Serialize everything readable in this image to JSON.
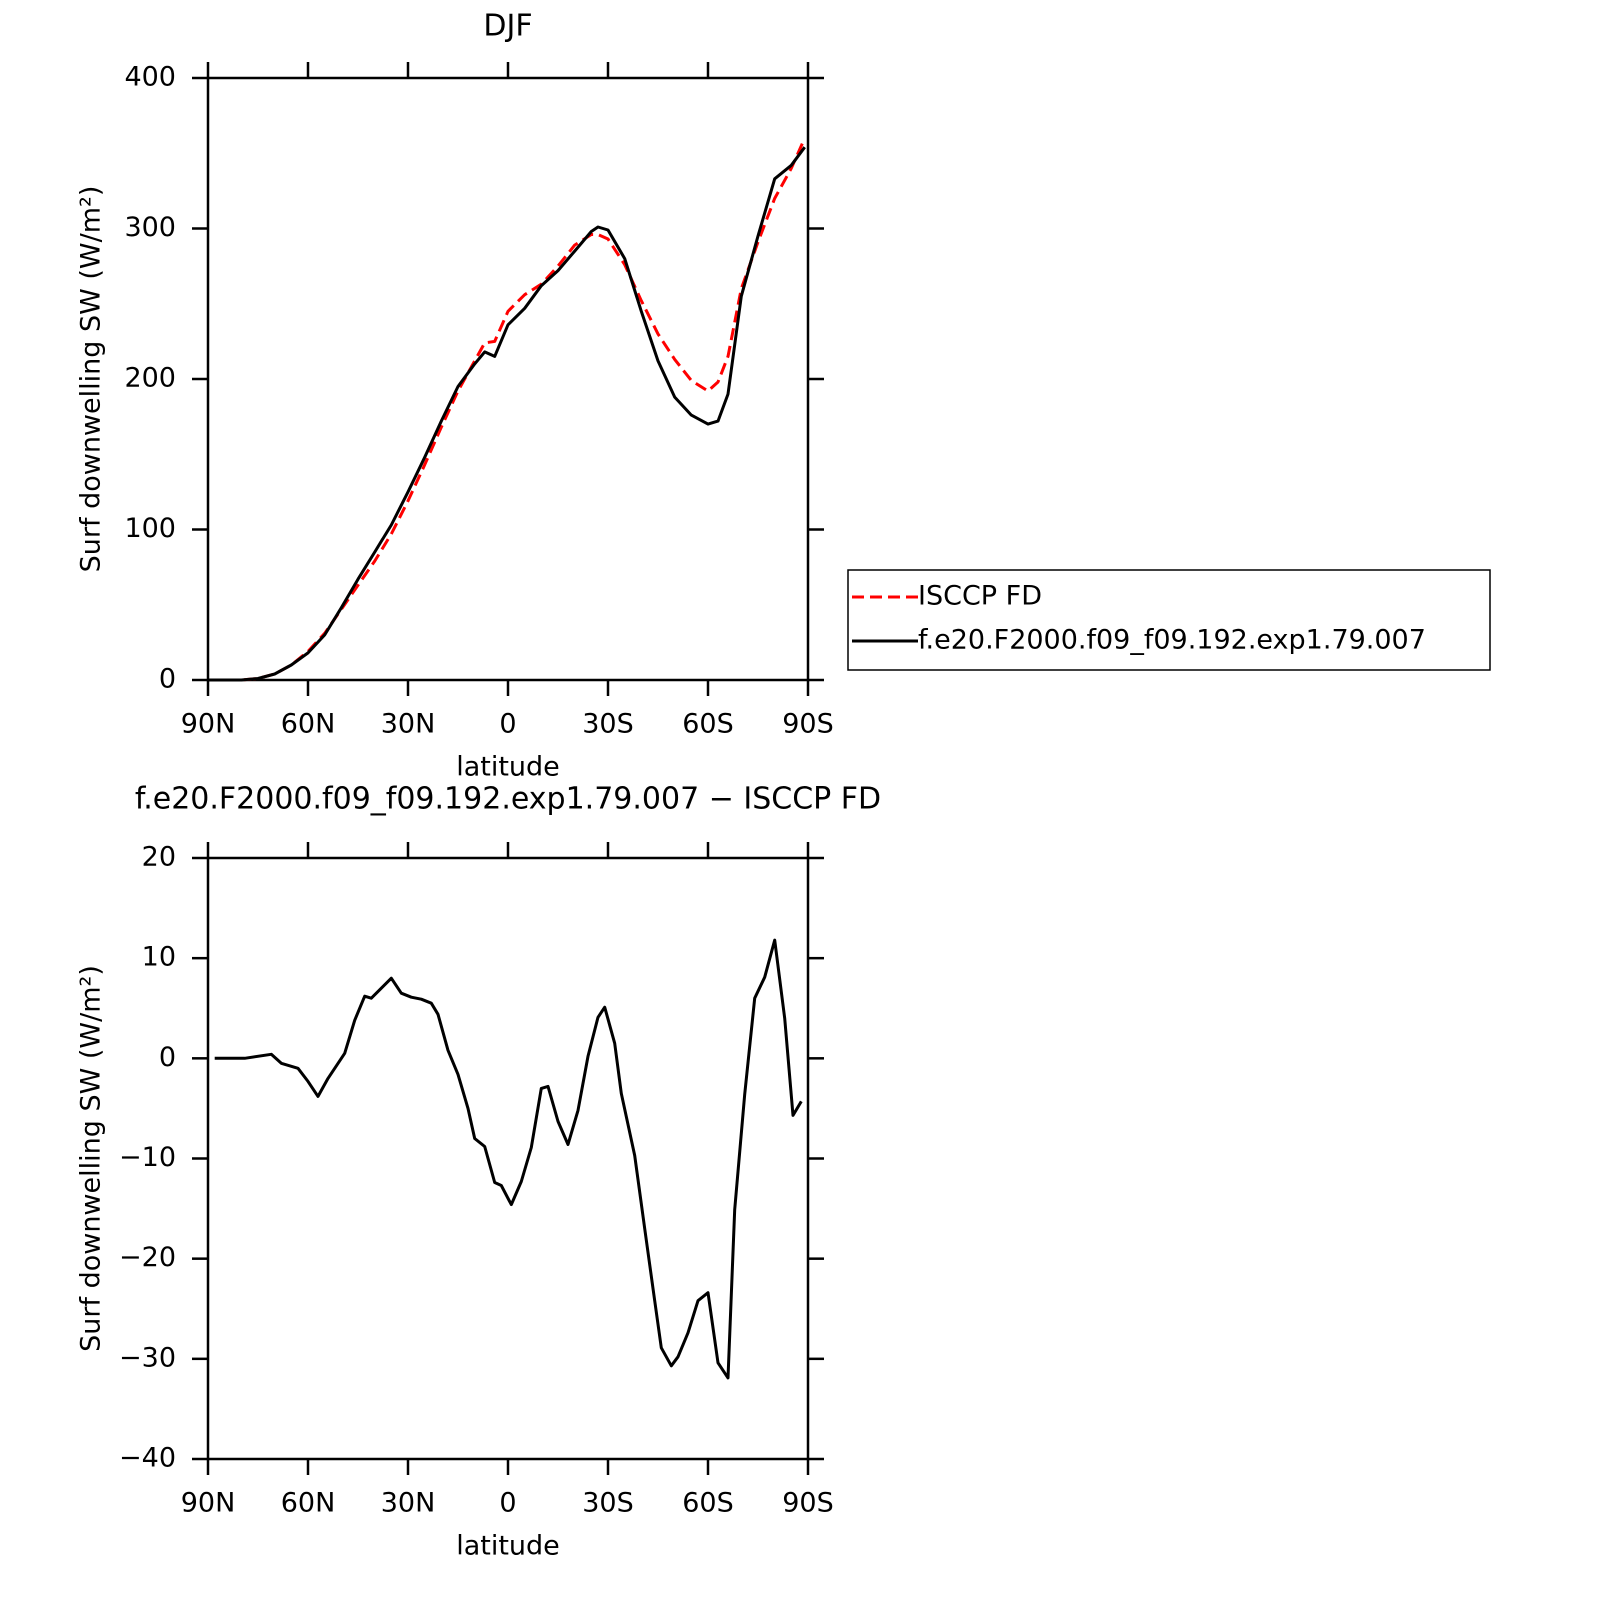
{
  "chart_data": [
    {
      "type": "line",
      "title": "DJF",
      "xlabel": "latitude",
      "ylabel": "Surf downwelling SW (W/m²)",
      "x": [
        90,
        80,
        75,
        70,
        65,
        60,
        55,
        50,
        45,
        40,
        35,
        30,
        25,
        20,
        15,
        10,
        7,
        4,
        0,
        -5,
        -10,
        -15,
        -20,
        -25,
        -27,
        -30,
        -35,
        -40,
        -45,
        -50,
        -55,
        -60,
        -63,
        -66,
        -70,
        -75,
        -80,
        -85,
        -89
      ],
      "xlim": [
        90,
        -90
      ],
      "xticks": [
        {
          "value": 90,
          "label": "90N"
        },
        {
          "value": 60,
          "label": "60N"
        },
        {
          "value": 30,
          "label": "30N"
        },
        0,
        {
          "value": -30,
          "label": "30S"
        },
        {
          "value": -60,
          "label": "60S"
        },
        {
          "value": -90,
          "label": "90S"
        }
      ],
      "ylim": [
        0,
        400
      ],
      "yticks": [
        0,
        100,
        200,
        300,
        400
      ],
      "legend": "right",
      "series": [
        {
          "name": "ISCCP FD",
          "color": "#ff0000",
          "dash": "dashed",
          "values": [
            0,
            0,
            1,
            4,
            10,
            19,
            31,
            47,
            63,
            79,
            97,
            119,
            143,
            168,
            192,
            212,
            224,
            225,
            245,
            256,
            263,
            275,
            289,
            296,
            296,
            293,
            276,
            252,
            230,
            213,
            199,
            192,
            198,
            215,
            260,
            291,
            320,
            340,
            360
          ]
        },
        {
          "name": "f.e20.F2000.f09_f09.192.exp1.79.007",
          "color": "#000000",
          "dash": "solid",
          "values": [
            0,
            0,
            1,
            4,
            10,
            18,
            30,
            48,
            67,
            85,
            103,
            125,
            148,
            172,
            195,
            210,
            218,
            215,
            236,
            247,
            262,
            272,
            285,
            298,
            301,
            299,
            280,
            245,
            212,
            188,
            176,
            170,
            172,
            190,
            255,
            295,
            333,
            342,
            354
          ]
        }
      ]
    },
    {
      "type": "line",
      "title": "f.e20.F2000.f09_f09.192.exp1.79.007 − ISCCP FD",
      "xlabel": "latitude",
      "ylabel": "Surf downwelling SW (W/m²)",
      "x": [
        88,
        79,
        71,
        68,
        63,
        60,
        57,
        54,
        49,
        46,
        43,
        41,
        35,
        32,
        29,
        26,
        23,
        21,
        18,
        15,
        12,
        10,
        7,
        4,
        2,
        -1,
        -4,
        -7,
        -10,
        -12,
        -15,
        -18,
        -21,
        -24,
        -27,
        -29,
        -32,
        -34,
        -38,
        -41,
        -44,
        -46,
        -49,
        -51,
        -54,
        -57,
        -60,
        -63,
        -66,
        -68,
        -71,
        -74,
        -77,
        -80,
        -83,
        -85.5,
        -88
      ],
      "xlim": [
        90,
        -90
      ],
      "xticks": [
        {
          "value": 90,
          "label": "90N"
        },
        {
          "value": 60,
          "label": "60N"
        },
        {
          "value": 30,
          "label": "30N"
        },
        0,
        {
          "value": -30,
          "label": "30S"
        },
        {
          "value": -60,
          "label": "60S"
        },
        {
          "value": -90,
          "label": "90S"
        }
      ],
      "ylim": [
        -40,
        20
      ],
      "yticks": [
        {
          "value": -40,
          "label": "−40"
        },
        {
          "value": -30,
          "label": "−30"
        },
        {
          "value": -20,
          "label": "−20"
        },
        {
          "value": -10,
          "label": "−10"
        },
        0,
        10,
        20
      ],
      "series": [
        {
          "color": "#000000",
          "dash": "solid",
          "values": [
            0,
            0,
            0.4,
            -0.5,
            -1,
            -2.3,
            -3.8,
            -2,
            0.5,
            3.8,
            6.2,
            6,
            8,
            6.5,
            6.1,
            5.9,
            5.5,
            4.4,
            0.8,
            -1.6,
            -5,
            -8,
            -8.8,
            -12.4,
            -12.7,
            -14.6,
            -12.3,
            -8.9,
            -3,
            -2.8,
            -6.3,
            -8.6,
            -5.2,
            0.2,
            4.1,
            5.1,
            1.5,
            -3.5,
            -9.7,
            -17,
            -24.2,
            -28.9,
            -30.7,
            -29.8,
            -27.4,
            -24.2,
            -23.4,
            -30.4,
            -31.9,
            -15.1,
            -3.6,
            6,
            8.1,
            11.8,
            4,
            -5.7,
            -4.3
          ]
        }
      ]
    }
  ]
}
